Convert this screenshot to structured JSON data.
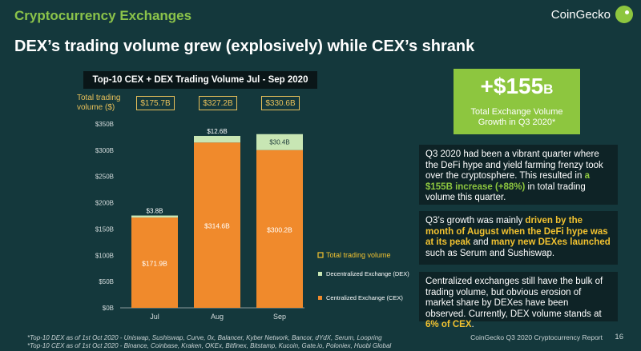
{
  "header": {
    "section_title": "Cryptocurrency Exchanges",
    "brand": "CoinGecko",
    "headline": "DEX’s trading volume grew (explosively) while CEX’s shrank"
  },
  "chart_panel": {
    "total_label": "Total trading volume ($)",
    "totals": [
      "$175.7B",
      "$327.2B",
      "$330.6B"
    ]
  },
  "chart_data": {
    "type": "bar",
    "stacked": true,
    "title": "Top-10 CEX + DEX Trading Volume Jul - Sep 2020",
    "categories": [
      "Jul",
      "Aug",
      "Sep"
    ],
    "ylim": [
      0,
      350
    ],
    "y_ticks": [
      "$0B",
      "$50B",
      "$100B",
      "$150B",
      "$200B",
      "$250B",
      "$300B",
      "$350B"
    ],
    "series": [
      {
        "name": "Centralized Exchange (CEX)",
        "values": [
          171.9,
          314.6,
          300.2
        ],
        "labels": [
          "$171.9B",
          "$314.6B",
          "$300.2B"
        ],
        "color": "#f08a2c"
      },
      {
        "name": "Decentralized Exchange (DEX)",
        "values": [
          3.8,
          12.6,
          30.4
        ],
        "labels": [
          "$3.8B",
          "$12.6B",
          "$30.4B"
        ],
        "color": "#c8e6b4"
      }
    ],
    "legend": [
      {
        "name": "Total trading volume",
        "color": "#f2c230",
        "style": "outline"
      },
      {
        "name": "Decentralized Exchange (DEX)",
        "color": "#c8e6b4",
        "style": "fill"
      },
      {
        "name": "Centralized Exchange (CEX)",
        "color": "#f08a2c",
        "style": "fill"
      }
    ],
    "legend_position": "right",
    "grid": false
  },
  "callout": {
    "big_number": "+$155",
    "big_unit": "B",
    "subtitle": "Total Exchange Volume Growth in Q3 2020*"
  },
  "notes": [
    {
      "parts": [
        {
          "text": "Q3 2020 had been a vibrant quarter where the DeFi hype and yield farming frenzy took over the cryptosphere. This resulted in ",
          "hl": ""
        },
        {
          "text": "a $155B increase (+88%)",
          "hl": "green"
        },
        {
          "text": " in total trading volume this quarter.",
          "hl": ""
        }
      ]
    },
    {
      "parts": [
        {
          "text": "Q3’s growth was mainly ",
          "hl": ""
        },
        {
          "text": "driven by the month of August when the DeFi hype was at its peak",
          "hl": "yellow"
        },
        {
          "text": " and ",
          "hl": ""
        },
        {
          "text": "many new DEXes launched",
          "hl": "yellow"
        },
        {
          "text": " such as Serum and Sushiswap.",
          "hl": ""
        }
      ]
    },
    {
      "parts": [
        {
          "text": "Centralized exchanges still have the bulk of trading volume, but obvious erosion of market share by DEXes have been observed. Currently, DEX volume stands at ",
          "hl": ""
        },
        {
          "text": "6% of CEX",
          "hl": "yellow"
        },
        {
          "text": ".",
          "hl": ""
        }
      ]
    }
  ],
  "footer": {
    "footnote_dex": "*Top-10 DEX as of 1st Oct 2020 - Uniswap, Sushiswap, Curve, 0x, Balancer, Kyber Network, Bancor, dYdX, Serum, Loopring",
    "footnote_cex": "*Top-10 CEX as of 1st Oct 2020 - Binance, Coinbase, Kraken, OKEx, Bitfinex, Bitstamp, Kucoin, Gate.io, Poloniex, Huobi Global",
    "report_name": "CoinGecko Q3 2020 Cryptocurrency Report",
    "page_number": "16"
  }
}
